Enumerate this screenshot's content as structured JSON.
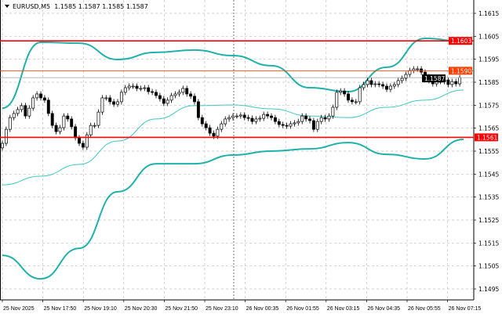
{
  "header": {
    "symbol": "EURUSD,M5",
    "open": "1.1585",
    "high": "1.1587",
    "low": "1.1585",
    "close": "1.1587"
  },
  "chart_data": {
    "type": "candlestick",
    "title": "",
    "ylim": [
      1.1488,
      1.1621
    ],
    "y_ticks": [
      "1.1615",
      "1.1605",
      "1.1595",
      "1.1585",
      "1.1575",
      "1.1565",
      "1.1555",
      "1.1545",
      "1.1535",
      "1.1525",
      "1.1515",
      "1.1505",
      "1.1495"
    ],
    "x_ticks": [
      "25 Nov 2025",
      "25 Nov 17:50",
      "25 Nov 19:10",
      "25 Nov 20:30",
      "25 Nov 21:50",
      "25 Nov 23:10",
      "26 Nov 00:35",
      "26 Nov 01:55",
      "26 Nov 03:15",
      "26 Nov 04:35",
      "26 Nov 05:55",
      "26 Nov 07:15"
    ],
    "grid": true,
    "closes": [
      1.15584,
      1.15645,
      1.15696,
      1.15714,
      1.15731,
      1.15748,
      1.15703,
      1.15737,
      1.15782,
      1.15799,
      1.15782,
      1.15772,
      1.15714,
      1.15662,
      1.15635,
      1.15652,
      1.15703,
      1.1569,
      1.15656,
      1.15608,
      1.15584,
      1.15567,
      1.15621,
      1.15662,
      1.15662,
      1.1572,
      1.15782,
      1.15782,
      1.15765,
      1.15754,
      1.15765,
      1.15806,
      1.15826,
      1.15833,
      1.15833,
      1.15823,
      1.15823,
      1.15826,
      1.15809,
      1.15806,
      1.15792,
      1.15778,
      1.15758,
      1.15772,
      1.15792,
      1.15799,
      1.15806,
      1.15823,
      1.15799,
      1.15789,
      1.15765,
      1.15696,
      1.15669,
      1.15652,
      1.15628,
      1.15615,
      1.15645,
      1.15669,
      1.1569,
      1.15696,
      1.15703,
      1.15703,
      1.15707,
      1.15696,
      1.15693,
      1.15679,
      1.1569,
      1.15693,
      1.1571,
      1.15703,
      1.15696,
      1.15679,
      1.15666,
      1.15662,
      1.15659,
      1.15669,
      1.15673,
      1.15679,
      1.15703,
      1.1569,
      1.15683,
      1.15645,
      1.15679,
      1.15696,
      1.1569,
      1.15703,
      1.15741,
      1.15806,
      1.15812,
      1.15799,
      1.15772,
      1.15765,
      1.15765,
      1.15826,
      1.1584,
      1.15857,
      1.1584,
      1.15843,
      1.1584,
      1.15833,
      1.15819,
      1.15833,
      1.1584,
      1.15857,
      1.15867,
      1.15884,
      1.15901,
      1.15908,
      1.15908,
      1.15894,
      1.15874,
      1.15857,
      1.15843,
      1.15853,
      1.15853,
      1.1586,
      1.1584,
      1.15853,
      1.15843,
      1.1587
    ],
    "bollinger_step_bars": 10,
    "upper_band": [
      1.15737,
      1.16024,
      1.1602,
      1.15949,
      1.1598,
      1.1599,
      1.15966,
      1.15922,
      1.15826,
      1.15809,
      1.15915,
      1.16041,
      1.16027
    ],
    "middle_band": [
      1.15403,
      1.15441,
      1.15492,
      1.15594,
      1.1569,
      1.15748,
      1.15751,
      1.15734,
      1.15703,
      1.15696,
      1.15741,
      1.15772,
      1.15816
    ],
    "lower_band": [
      1.15096,
      1.14994,
      1.15127,
      1.15373,
      1.15495,
      1.15495,
      1.15533,
      1.1555,
      1.1556,
      1.15587,
      1.15536,
      1.15516,
      1.15601
    ],
    "levels": [
      {
        "price": 1.1603,
        "label": "1.1603",
        "color": "#ff0000"
      },
      {
        "price": 1.1561,
        "label": "1.1561",
        "color": "#ff0000"
      },
      {
        "price": 1.159,
        "label": "1.1590",
        "color": "#ff4000"
      }
    ],
    "bid": {
      "price": 1.1587,
      "label": "1.1587",
      "color": "#000000"
    },
    "colors": {
      "band": "#20b2aa",
      "middle": "#40c8c0",
      "grid": "#c0c0c0",
      "candle": "#000000",
      "bid_line": "#a0a0a0"
    }
  }
}
